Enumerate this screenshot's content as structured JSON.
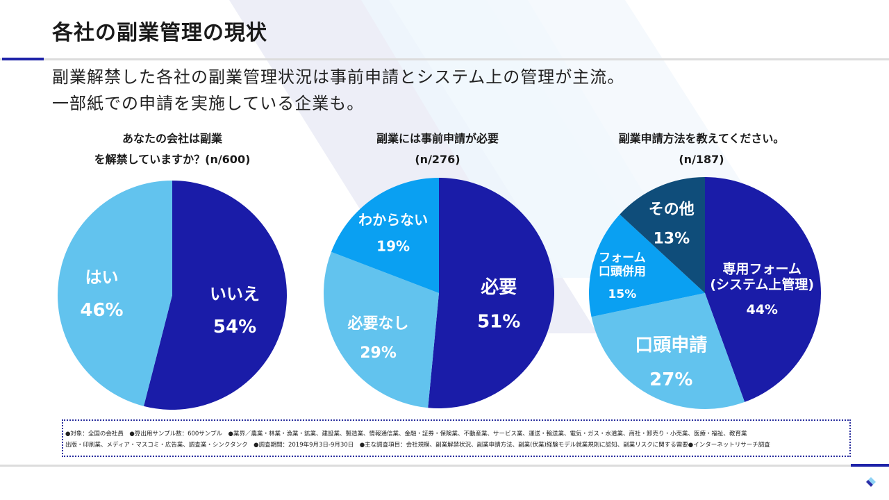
{
  "title": "各社の副業管理の現状",
  "subtitle": {
    "line1": "副業解禁した各社の副業管理状況は事前申請とシステム上の管理が主流。",
    "line2": "一部紙での申請を実施している企業も。"
  },
  "colors": {
    "navy": "#1a1ca8",
    "light_blue": "#62c3ee",
    "bright_blue": "#0aa0f2",
    "dark_teal": "#0f4d7a",
    "accent": "#1e23a8"
  },
  "chart_data": [
    {
      "type": "pie",
      "title_line1": "あなたの会社は副業",
      "title_line2": "を解禁していますか？(n/600)",
      "slices": [
        {
          "label": "いいえ",
          "value": 54,
          "display": "54%",
          "color": "#1a1ca8"
        },
        {
          "label": "はい",
          "value": 46,
          "display": "46%",
          "color": "#62c3ee"
        }
      ]
    },
    {
      "type": "pie",
      "title_line1": "副業には事前申請が必要",
      "title_line2": "(n/276)",
      "slices": [
        {
          "label": "必要",
          "value": 51,
          "display": "51%",
          "color": "#1a1ca8"
        },
        {
          "label": "必要なし",
          "value": 29,
          "display": "29%",
          "color": "#62c3ee"
        },
        {
          "label": "わからない",
          "value": 19,
          "display": "19%",
          "color": "#0aa0f2"
        }
      ]
    },
    {
      "type": "pie",
      "title_line1": "副業申請方法を教えてください。",
      "title_line2": "(n/187)",
      "slices": [
        {
          "label": "専用フォーム\n(システム上管理)",
          "value": 44,
          "display": "44%",
          "color": "#1a1ca8"
        },
        {
          "label": "口頭申請",
          "value": 27,
          "display": "27%",
          "color": "#62c3ee"
        },
        {
          "label": "フォーム\n口頭併用",
          "value": 15,
          "display": "15%",
          "color": "#0aa0f2"
        },
        {
          "label": "その他",
          "value": 13,
          "display": "13%",
          "color": "#0f4d7a"
        }
      ]
    }
  ],
  "note": {
    "line1": "●対象：全国の会社員　●算出用サンプル数：600サンプル　●業界／農業・林業・漁業・鉱業、建設業、製造業、情報通信業、金融・証券・保険業、不動産業、サービス業、運送・輸送業、電気・ガス・水道業、商社・卸売り・小売業、医療・福祉、教育業",
    "line2": "出版・印刷業、メディア・マスコミ・広告業、調査業・シンクタンク　●調査期間：2019年9月3日-9月30日　●主な調査項目：会社規模、副業解禁状況、副業申請方法、副業(伏業)経験モデル就業規則に認知、副業リスクに関する需要●インターネットリサーチ調査"
  },
  "logo": {
    "icon": "company-logo-icon"
  }
}
